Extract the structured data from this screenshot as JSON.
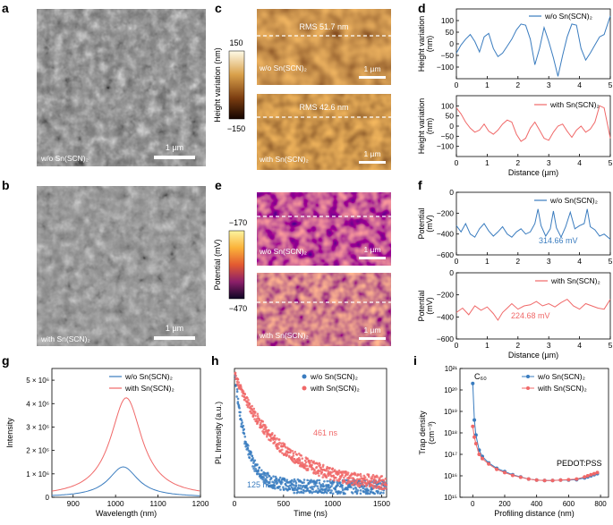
{
  "colors": {
    "blue": "#3a7cbf",
    "red": "#f06868",
    "sem_bg": "#777777"
  },
  "panel_letters": {
    "a": "a",
    "b": "b",
    "c": "c",
    "d": "d",
    "e": "e",
    "f": "f",
    "g": "g",
    "h": "h",
    "i": "i"
  },
  "panel_a": {
    "caption": "w/o Sn(SCN)₂",
    "scale": "1 µm"
  },
  "panel_b": {
    "caption": "with Sn(SCN)₂",
    "scale": "1 µm"
  },
  "panel_c": {
    "colorbar_label": "Height variation (nm)",
    "colorbar_max": "150",
    "colorbar_min": "−150",
    "top": {
      "rms": "RMS 51.7 nm",
      "caption": "w/o Sn(SCN)₂",
      "scale": "1 µm"
    },
    "bottom": {
      "rms": "RMS 42.6 nm",
      "caption": "with Sn(SCN)₂",
      "scale": "1 µm"
    }
  },
  "panel_e": {
    "colorbar_label": "Potential (mV)",
    "colorbar_max": "−170",
    "colorbar_min": "−470",
    "top": {
      "caption": "w/o Sn(SCN)₂",
      "scale": "1 µm"
    },
    "bottom": {
      "caption": "with Sn(SCN)₂",
      "scale": "1 µm"
    }
  },
  "chart_data": [
    {
      "id": "d-top",
      "type": "line",
      "title": "",
      "xlabel": "",
      "ylabel": "Height variation (nm)",
      "xlim": [
        0,
        5
      ],
      "ylim": [
        -150,
        150
      ],
      "xticks": [
        0,
        1,
        2,
        3,
        4,
        5
      ],
      "yticks": [
        -100,
        -50,
        0,
        50,
        100
      ],
      "series": [
        {
          "name": "w/o Sn(SCN)₂",
          "color": "#3a7cbf",
          "x": [
            0,
            0.15,
            0.3,
            0.45,
            0.6,
            0.75,
            0.9,
            1.05,
            1.2,
            1.35,
            1.5,
            1.65,
            1.8,
            1.95,
            2.1,
            2.25,
            2.4,
            2.55,
            2.7,
            2.85,
            3.0,
            3.15,
            3.3,
            3.45,
            3.6,
            3.75,
            3.9,
            4.05,
            4.2,
            4.35,
            4.5,
            4.65,
            4.8,
            5.0
          ],
          "y": [
            -40,
            -5,
            20,
            40,
            10,
            -35,
            30,
            45,
            -20,
            -55,
            -40,
            -10,
            20,
            60,
            85,
            80,
            20,
            -90,
            -20,
            70,
            10,
            -60,
            -140,
            -50,
            30,
            85,
            80,
            -20,
            -70,
            -40,
            -5,
            30,
            40,
            120
          ]
        }
      ]
    },
    {
      "id": "d-bottom",
      "type": "line",
      "title": "",
      "xlabel": "Distance (µm)",
      "ylabel": "Height variation (nm)",
      "xlim": [
        0,
        5
      ],
      "ylim": [
        -150,
        150
      ],
      "xticks": [
        0,
        1,
        2,
        3,
        4,
        5
      ],
      "yticks": [
        -100,
        -50,
        0,
        50,
        100
      ],
      "series": [
        {
          "name": "with Sn(SCN)₂",
          "color": "#f06868",
          "x": [
            0,
            0.15,
            0.3,
            0.45,
            0.6,
            0.75,
            0.9,
            1.05,
            1.2,
            1.35,
            1.5,
            1.65,
            1.8,
            1.95,
            2.1,
            2.25,
            2.4,
            2.55,
            2.7,
            2.85,
            3.0,
            3.15,
            3.3,
            3.45,
            3.6,
            3.75,
            3.9,
            4.05,
            4.2,
            4.35,
            4.5,
            4.65,
            4.8,
            5.0
          ],
          "y": [
            90,
            60,
            20,
            -10,
            -30,
            -20,
            10,
            -25,
            -40,
            -20,
            10,
            30,
            20,
            -40,
            -75,
            -60,
            -10,
            20,
            -20,
            -60,
            -70,
            -30,
            0,
            10,
            -25,
            -55,
            -20,
            0,
            -30,
            -15,
            20,
            100,
            90,
            -60
          ]
        }
      ]
    },
    {
      "id": "f-top",
      "type": "line",
      "title": "",
      "xlabel": "",
      "ylabel": "Potential (mV)",
      "xlim": [
        0,
        5
      ],
      "ylim": [
        -600,
        0
      ],
      "xticks": [
        0,
        1,
        2,
        3,
        4,
        5
      ],
      "yticks": [
        -600,
        -400,
        -200,
        0
      ],
      "annotation": "314.66 mV",
      "series": [
        {
          "name": "w/o Sn(SCN)₂",
          "color": "#3a7cbf",
          "x": [
            0,
            0.15,
            0.3,
            0.45,
            0.6,
            0.75,
            0.9,
            1.05,
            1.2,
            1.35,
            1.5,
            1.65,
            1.8,
            1.95,
            2.1,
            2.25,
            2.4,
            2.55,
            2.65,
            2.75,
            2.9,
            3.05,
            3.15,
            3.25,
            3.4,
            3.55,
            3.7,
            3.85,
            4.0,
            4.15,
            4.25,
            4.35,
            4.5,
            4.65,
            4.8,
            5.0
          ],
          "y": [
            -320,
            -380,
            -300,
            -400,
            -430,
            -350,
            -300,
            -370,
            -420,
            -380,
            -330,
            -400,
            -430,
            -380,
            -350,
            -400,
            -380,
            -300,
            -160,
            -320,
            -420,
            -350,
            -180,
            -340,
            -430,
            -330,
            -190,
            -350,
            -320,
            -300,
            -160,
            -330,
            -360,
            -420,
            -400,
            -450
          ]
        }
      ]
    },
    {
      "id": "f-bottom",
      "type": "line",
      "title": "",
      "xlabel": "Distance (µm)",
      "ylabel": "Potential (mV)",
      "xlim": [
        0,
        5
      ],
      "ylim": [
        -600,
        0
      ],
      "xticks": [
        0,
        1,
        2,
        3,
        4,
        5
      ],
      "yticks": [
        -600,
        -400,
        -200,
        0
      ],
      "annotation": "224.68 mV",
      "series": [
        {
          "name": "with Sn(SCN)₂",
          "color": "#f06868",
          "x": [
            0,
            0.2,
            0.4,
            0.6,
            0.8,
            1.0,
            1.2,
            1.35,
            1.5,
            1.65,
            1.8,
            2.0,
            2.2,
            2.4,
            2.6,
            2.8,
            3.0,
            3.2,
            3.4,
            3.6,
            3.8,
            4.0,
            4.2,
            4.4,
            4.6,
            4.8,
            5.0
          ],
          "y": [
            -360,
            -320,
            -380,
            -300,
            -340,
            -310,
            -370,
            -430,
            -360,
            -320,
            -280,
            -330,
            -300,
            -290,
            -260,
            -300,
            -280,
            -310,
            -270,
            -240,
            -300,
            -330,
            -280,
            -300,
            -320,
            -330,
            -240
          ]
        }
      ]
    },
    {
      "id": "g",
      "type": "line",
      "title": "",
      "xlabel": "Wavelength (nm)",
      "ylabel": "Intensity",
      "xlim": [
        850,
        1200
      ],
      "ylim": [
        0,
        5.5
      ],
      "xticks": [
        900,
        1000,
        1100,
        1200
      ],
      "yticks": [
        0,
        1,
        2,
        3,
        4,
        5
      ],
      "ytick_labels": [
        "0",
        "1 × 10⁶",
        "2 × 10⁶",
        "3 × 10⁶",
        "4 × 10⁶",
        "5 × 10⁶"
      ],
      "series": [
        {
          "name": "w/o Sn(SCN)₂",
          "color": "#3a7cbf",
          "peak_x": 1018,
          "peak_y": 1.3,
          "hwhm": 42
        },
        {
          "name": "with Sn(SCN)₂",
          "color": "#f06868",
          "peak_x": 1025,
          "peak_y": 4.25,
          "hwhm": 45
        }
      ]
    },
    {
      "id": "h",
      "type": "scatter",
      "title": "",
      "xlabel": "Time (ns)",
      "ylabel": "PL Intensity (a.u.)",
      "xlim": [
        0,
        1550
      ],
      "ylim": [
        0,
        1
      ],
      "xticks": [
        0,
        500,
        1000,
        1500
      ],
      "series": [
        {
          "name": "w/o Sn(SCN)₂",
          "color": "#3a7cbf",
          "tau_ns": 125,
          "label": "125 ns"
        },
        {
          "name": "with Sn(SCN)₂",
          "color": "#f06868",
          "tau_ns": 461,
          "label": "461 ns"
        }
      ]
    },
    {
      "id": "i",
      "type": "line",
      "title": "",
      "xlabel": "Profiling distance (nm)",
      "ylabel": "Trap density (cm⁻³)",
      "xlim": [
        -80,
        850
      ],
      "ylog": true,
      "ylim_exp": [
        15,
        21
      ],
      "xticks": [
        0,
        200,
        400,
        600,
        800
      ],
      "ytick_labels": [
        "10¹⁵",
        "10¹⁶",
        "10¹⁷",
        "10¹⁸",
        "10¹⁹",
        "10²⁰",
        "10²¹"
      ],
      "annotations": [
        "C₆₀",
        "PEDOT:PSS"
      ],
      "series": [
        {
          "name": "w/o Sn(SCN)₂",
          "color": "#3a7cbf",
          "x": [
            0,
            10,
            20,
            40,
            60,
            100,
            150,
            200,
            250,
            300,
            350,
            400,
            450,
            500,
            550,
            600,
            650,
            700,
            720,
            740,
            760,
            780
          ],
          "log_y": [
            20.3,
            18.6,
            17.9,
            17.2,
            16.9,
            16.6,
            16.35,
            16.2,
            16.05,
            15.95,
            15.85,
            15.8,
            15.78,
            15.78,
            15.8,
            15.8,
            15.82,
            15.9,
            15.95,
            16.0,
            16.05,
            16.1
          ]
        },
        {
          "name": "with Sn(SCN)₂",
          "color": "#f06868",
          "x": [
            0,
            10,
            20,
            40,
            60,
            100,
            150,
            200,
            250,
            300,
            350,
            400,
            450,
            500,
            550,
            600,
            650,
            700,
            720,
            740,
            760,
            780
          ],
          "log_y": [
            18.3,
            17.8,
            17.5,
            17.0,
            16.8,
            16.55,
            16.3,
            16.15,
            16.02,
            15.93,
            15.85,
            15.8,
            15.78,
            15.78,
            15.8,
            15.82,
            15.85,
            15.95,
            16.0,
            16.05,
            16.1,
            16.15
          ]
        }
      ]
    }
  ]
}
